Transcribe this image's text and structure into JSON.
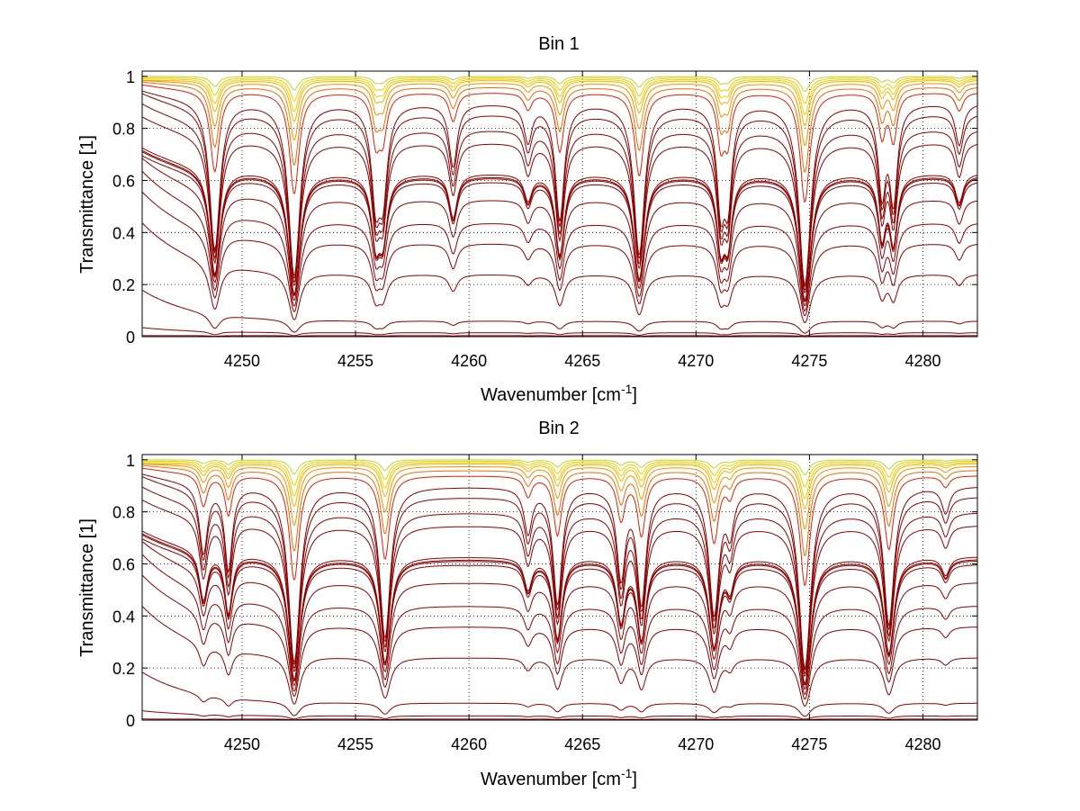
{
  "chart_data": [
    {
      "type": "line",
      "title": "Bin 1",
      "xlabel": "Wavenumber [cm",
      "xlabel_sup": "-1",
      "xlabel_end": "]",
      "ylabel": "Transmittance [1]",
      "xlim": [
        4245.6,
        4282.4
      ],
      "ylim": [
        0,
        1.02
      ],
      "xticks": [
        4250,
        4255,
        4260,
        4265,
        4270,
        4275,
        4280
      ],
      "yticks": [
        0,
        0.2,
        0.4,
        0.6,
        0.8,
        1
      ],
      "ytick_labels": [
        "0",
        "0.2",
        "0.4",
        "0.6",
        "0.8",
        "1"
      ],
      "grid": true,
      "legend": "none",
      "line_colors": [
        "#8b0000",
        "#a00000",
        "#b40000",
        "#cc1100",
        "#e02000",
        "#ee4400",
        "#f06a00",
        "#f59000",
        "#f5b000",
        "#e8d000",
        "#b8d830",
        "#48c8a8"
      ],
      "absorption_lines": [
        {
          "x": 4248.8,
          "depth": 1.0,
          "width": 0.22
        },
        {
          "x": 4252.3,
          "depth": 1.35,
          "width": 0.22
        },
        {
          "x": 4255.9,
          "depth": 0.55,
          "width": 0.2
        },
        {
          "x": 4256.2,
          "depth": 0.5,
          "width": 0.2
        },
        {
          "x": 4259.3,
          "depth": 0.32,
          "width": 0.2
        },
        {
          "x": 4262.6,
          "depth": 0.18,
          "width": 0.2
        },
        {
          "x": 4264.0,
          "depth": 0.7,
          "width": 0.2
        },
        {
          "x": 4267.5,
          "depth": 1.05,
          "width": 0.22
        },
        {
          "x": 4271.1,
          "depth": 0.6,
          "width": 0.18
        },
        {
          "x": 4271.4,
          "depth": 0.55,
          "width": 0.18
        },
        {
          "x": 4274.8,
          "depth": 1.5,
          "width": 0.22
        },
        {
          "x": 4278.2,
          "depth": 0.5,
          "width": 0.18
        },
        {
          "x": 4278.7,
          "depth": 0.55,
          "width": 0.18
        },
        {
          "x": 4281.6,
          "depth": 0.2,
          "width": 0.2
        }
      ],
      "series": [
        {
          "level": 1.0,
          "tilt": 0.0
        },
        {
          "level": 0.995,
          "tilt": 0.0
        },
        {
          "level": 0.99,
          "tilt": 0.0
        },
        {
          "level": 0.985,
          "tilt": 0.0
        },
        {
          "level": 0.975,
          "tilt": 0.01
        },
        {
          "level": 0.96,
          "tilt": 0.02
        },
        {
          "level": 0.94,
          "tilt": 0.03
        },
        {
          "level": 0.9,
          "tilt": 0.05
        },
        {
          "level": 0.86,
          "tilt": 0.08
        },
        {
          "level": 0.8,
          "tilt": 0.1
        },
        {
          "level": 0.75,
          "tilt": 0.1
        },
        {
          "level": 0.63,
          "tilt": 0.1
        },
        {
          "level": 0.62,
          "tilt": 0.1
        },
        {
          "level": 0.615,
          "tilt": 0.1
        },
        {
          "level": 0.6,
          "tilt": 0.1
        },
        {
          "level": 0.53,
          "tilt": 0.16
        },
        {
          "level": 0.44,
          "tilt": 0.2
        },
        {
          "level": 0.36,
          "tilt": 0.2
        },
        {
          "level": 0.24,
          "tilt": 0.2
        },
        {
          "level": 0.06,
          "tilt": 0.12
        },
        {
          "level": 0.015,
          "tilt": 0.02
        },
        {
          "level": 0.004,
          "tilt": 0.0
        }
      ]
    },
    {
      "type": "line",
      "title": "Bin 2",
      "xlabel": "Wavenumber [cm",
      "xlabel_sup": "-1",
      "xlabel_end": "]",
      "ylabel": "Transmittance [1]",
      "xlim": [
        4245.6,
        4282.4
      ],
      "ylim": [
        0,
        1.02
      ],
      "xticks": [
        4250,
        4255,
        4260,
        4265,
        4270,
        4275,
        4280
      ],
      "yticks": [
        0,
        0.2,
        0.4,
        0.6,
        0.8,
        1
      ],
      "ytick_labels": [
        "0",
        "0.2",
        "0.4",
        "0.6",
        "0.8",
        "1"
      ],
      "grid": true,
      "legend": "none",
      "line_colors": [
        "#8b0000",
        "#a00000",
        "#b40000",
        "#cc1100",
        "#e02000",
        "#ee4400",
        "#f06a00",
        "#f59000",
        "#f5b000",
        "#e8d000",
        "#b8d830",
        "#48c8a8"
      ],
      "absorption_lines": [
        {
          "x": 4248.3,
          "depth": 0.35,
          "width": 0.2
        },
        {
          "x": 4249.4,
          "depth": 0.45,
          "width": 0.18
        },
        {
          "x": 4252.3,
          "depth": 1.4,
          "width": 0.22
        },
        {
          "x": 4256.3,
          "depth": 1.05,
          "width": 0.22
        },
        {
          "x": 4262.6,
          "depth": 0.22,
          "width": 0.2
        },
        {
          "x": 4263.9,
          "depth": 0.7,
          "width": 0.2
        },
        {
          "x": 4266.7,
          "depth": 0.5,
          "width": 0.2
        },
        {
          "x": 4267.6,
          "depth": 0.7,
          "width": 0.2
        },
        {
          "x": 4270.8,
          "depth": 0.8,
          "width": 0.22
        },
        {
          "x": 4271.5,
          "depth": 0.2,
          "width": 0.18
        },
        {
          "x": 4274.8,
          "depth": 1.5,
          "width": 0.22
        },
        {
          "x": 4278.5,
          "depth": 0.9,
          "width": 0.22
        },
        {
          "x": 4281.0,
          "depth": 0.12,
          "width": 0.2
        }
      ],
      "series": [
        {
          "level": 1.0,
          "tilt": 0.0
        },
        {
          "level": 0.995,
          "tilt": 0.0
        },
        {
          "level": 0.99,
          "tilt": 0.0
        },
        {
          "level": 0.985,
          "tilt": 0.0
        },
        {
          "level": 0.975,
          "tilt": 0.01
        },
        {
          "level": 0.96,
          "tilt": 0.02
        },
        {
          "level": 0.94,
          "tilt": 0.03
        },
        {
          "level": 0.9,
          "tilt": 0.05
        },
        {
          "level": 0.86,
          "tilt": 0.08
        },
        {
          "level": 0.8,
          "tilt": 0.1
        },
        {
          "level": 0.75,
          "tilt": 0.1
        },
        {
          "level": 0.63,
          "tilt": 0.1
        },
        {
          "level": 0.62,
          "tilt": 0.1
        },
        {
          "level": 0.615,
          "tilt": 0.1
        },
        {
          "level": 0.6,
          "tilt": 0.1
        },
        {
          "level": 0.53,
          "tilt": 0.16
        },
        {
          "level": 0.44,
          "tilt": 0.2
        },
        {
          "level": 0.36,
          "tilt": 0.2
        },
        {
          "level": 0.24,
          "tilt": 0.2
        },
        {
          "level": 0.065,
          "tilt": 0.12
        },
        {
          "level": 0.016,
          "tilt": 0.02
        },
        {
          "level": 0.004,
          "tilt": 0.0
        }
      ]
    }
  ]
}
